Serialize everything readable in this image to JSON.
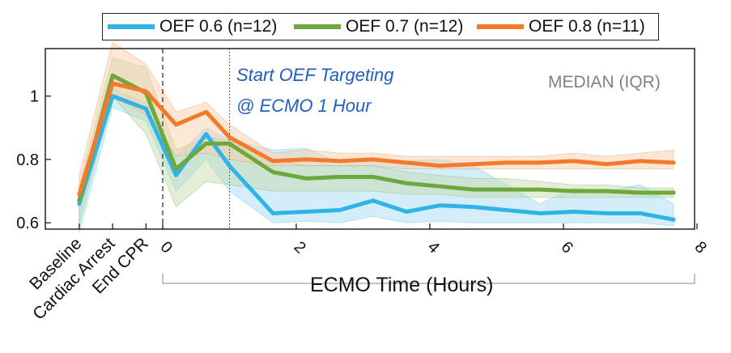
{
  "chart_data": {
    "type": "line",
    "legend": [
      "OEF 0.6 (n=12)",
      "OEF 0.7 (n=12)",
      "OEF 0.8 (n=11)"
    ],
    "legend_placement": "top",
    "annotation": [
      "Start OEF Targeting",
      "@ ECMO 1 Hour"
    ],
    "stat_label": "MEDIAN (IQR)",
    "xlabel": "ECMO Time (Hours)",
    "categories": [
      "Baseline",
      "Cardiac Arrest",
      "End CPR"
    ],
    "x_ticks": [
      "0",
      "2",
      "4",
      "6",
      "8"
    ],
    "y_ticks": [
      "0.6",
      "0.8",
      "1"
    ],
    "ylim": [
      0.58,
      1.15
    ],
    "xlim": [
      -1.9,
      8
    ],
    "grid": false,
    "vertical_lines": [
      {
        "x": 0,
        "style": "dashed"
      },
      {
        "x": 1,
        "style": "dotted"
      }
    ],
    "series": [
      {
        "name": "OEF 0.6 (n=12)",
        "color": "#2eb4e6",
        "band_color": "#9fd9f2",
        "x": [
          -1.25,
          -0.75,
          -0.25,
          0.2,
          0.65,
          1.0,
          1.65,
          2.15,
          2.65,
          3.15,
          3.65,
          4.15,
          4.65,
          5.15,
          5.65,
          6.15,
          6.65,
          7.15,
          7.65
        ],
        "y": [
          0.66,
          1.0,
          0.96,
          0.75,
          0.88,
          0.78,
          0.63,
          0.635,
          0.64,
          0.67,
          0.635,
          0.655,
          0.65,
          0.64,
          0.63,
          0.635,
          0.63,
          0.63,
          0.61
        ],
        "lower": [
          0.57,
          0.965,
          0.92,
          0.7,
          0.8,
          0.7,
          0.6,
          0.605,
          0.6,
          0.62,
          0.6,
          0.605,
          0.6,
          0.6,
          0.6,
          0.6,
          0.6,
          0.6,
          0.59
        ],
        "upper": [
          0.69,
          1.02,
          0.98,
          0.81,
          0.9,
          0.86,
          0.83,
          0.835,
          0.79,
          0.8,
          0.795,
          0.8,
          0.78,
          0.72,
          0.66,
          0.71,
          0.7,
          0.72,
          0.66
        ]
      },
      {
        "name": "OEF 0.7 (n=12)",
        "color": "#6ea83c",
        "band_color": "#c3d7a6",
        "x": [
          -1.25,
          -0.75,
          -0.25,
          0.2,
          0.65,
          1.0,
          1.65,
          2.15,
          2.65,
          3.15,
          3.65,
          4.15,
          4.65,
          5.15,
          5.65,
          6.15,
          6.65,
          7.15,
          7.65
        ],
        "y": [
          0.67,
          1.065,
          1.01,
          0.77,
          0.85,
          0.85,
          0.76,
          0.74,
          0.745,
          0.745,
          0.725,
          0.715,
          0.705,
          0.705,
          0.705,
          0.7,
          0.7,
          0.695,
          0.695
        ],
        "lower": [
          0.6,
          1.0,
          0.88,
          0.65,
          0.73,
          0.72,
          0.7,
          0.7,
          0.7,
          0.7,
          0.69,
          0.69,
          0.68,
          0.68,
          0.68,
          0.68,
          0.68,
          0.68,
          0.68
        ],
        "upper": [
          0.72,
          1.12,
          1.09,
          0.83,
          0.87,
          0.86,
          0.8,
          0.78,
          0.78,
          0.78,
          0.76,
          0.75,
          0.74,
          0.74,
          0.73,
          0.72,
          0.72,
          0.71,
          0.71
        ]
      },
      {
        "name": "OEF 0.8 (n=11)",
        "color": "#f27a2a",
        "band_color": "#f8c9a6",
        "x": [
          -1.25,
          -0.75,
          -0.25,
          0.2,
          0.65,
          1.0,
          1.65,
          2.15,
          2.65,
          3.15,
          3.65,
          4.15,
          4.65,
          5.15,
          5.65,
          6.15,
          6.65,
          7.15,
          7.65
        ],
        "y": [
          0.69,
          1.04,
          1.015,
          0.91,
          0.95,
          0.87,
          0.795,
          0.8,
          0.795,
          0.8,
          0.79,
          0.78,
          0.785,
          0.79,
          0.79,
          0.795,
          0.785,
          0.795,
          0.79
        ],
        "lower": [
          0.66,
          1.0,
          0.94,
          0.81,
          0.82,
          0.8,
          0.78,
          0.78,
          0.78,
          0.78,
          0.77,
          0.77,
          0.77,
          0.77,
          0.77,
          0.77,
          0.77,
          0.77,
          0.77
        ],
        "upper": [
          0.75,
          1.17,
          1.1,
          0.95,
          0.98,
          0.91,
          0.82,
          0.83,
          0.82,
          0.82,
          0.81,
          0.81,
          0.81,
          0.81,
          0.81,
          0.82,
          0.81,
          0.82,
          0.83
        ]
      }
    ]
  }
}
